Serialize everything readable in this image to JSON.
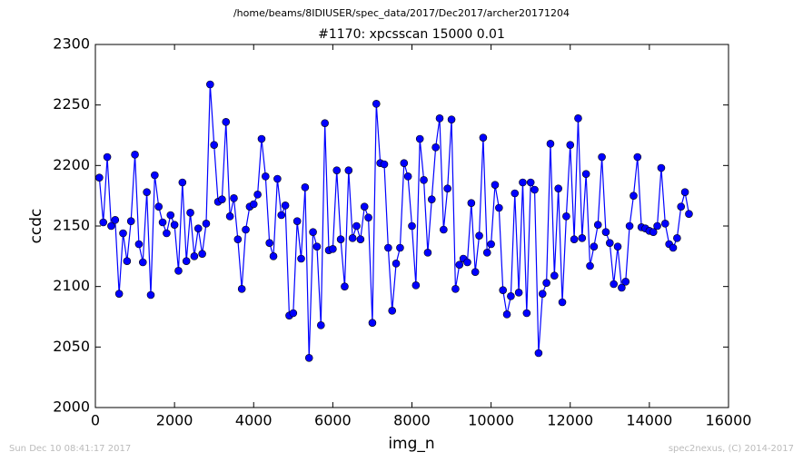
{
  "chart_data": {
    "type": "line",
    "suptitle": "/home/beams/8IDIUSER/spec_data/2017/Dec2017/archer20171204",
    "title": "#1170: xpcsscan 15000 0.01",
    "xlabel": "img_n",
    "ylabel": "ccdc",
    "footer_left": "Sun Dec 10 08:41:17 2017",
    "footer_right": "spec2nexus, (C) 2014-2017",
    "color": "#0000ff",
    "xlim": [
      0,
      16000
    ],
    "xticks": [
      0,
      2000,
      4000,
      6000,
      8000,
      10000,
      12000,
      14000,
      16000
    ],
    "ylim": [
      2000,
      2300
    ],
    "yticks": [
      2000,
      2050,
      2100,
      2150,
      2200,
      2250,
      2300
    ],
    "x": [
      100,
      200,
      300,
      400,
      500,
      600,
      700,
      800,
      900,
      1000,
      1100,
      1200,
      1300,
      1400,
      1500,
      1600,
      1700,
      1800,
      1900,
      2000,
      2100,
      2200,
      2300,
      2400,
      2500,
      2600,
      2700,
      2800,
      2900,
      3000,
      3100,
      3200,
      3300,
      3400,
      3500,
      3600,
      3700,
      3800,
      3900,
      4000,
      4100,
      4200,
      4300,
      4400,
      4500,
      4600,
      4700,
      4800,
      4900,
      5000,
      5100,
      5200,
      5300,
      5400,
      5500,
      5600,
      5700,
      5800,
      5900,
      6000,
      6100,
      6200,
      6300,
      6400,
      6500,
      6600,
      6700,
      6800,
      6900,
      7000,
      7100,
      7200,
      7300,
      7400,
      7500,
      7600,
      7700,
      7800,
      7900,
      8000,
      8100,
      8200,
      8300,
      8400,
      8500,
      8600,
      8700,
      8800,
      8900,
      9000,
      9100,
      9200,
      9300,
      9400,
      9500,
      9600,
      9700,
      9800,
      9900,
      10000,
      10100,
      10200,
      10300,
      10400,
      10500,
      10600,
      10700,
      10800,
      10900,
      11000,
      11100,
      11200,
      11300,
      11400,
      11500,
      11600,
      11700,
      11800,
      11900,
      12000,
      12100,
      12200,
      12300,
      12400,
      12500,
      12600,
      12700,
      12800,
      12900,
      13000,
      13100,
      13200,
      13300,
      13400,
      13500,
      13600,
      13700,
      13800,
      13900,
      14000,
      14100,
      14200,
      14300,
      14400,
      14500,
      14600,
      14700,
      14800,
      14900,
      15000
    ],
    "values": [
      2190,
      2153,
      2207,
      2150,
      2155,
      2094,
      2144,
      2121,
      2154,
      2209,
      2135,
      2120,
      2178,
      2093,
      2192,
      2166,
      2153,
      2144,
      2159,
      2151,
      2113,
      2186,
      2121,
      2161,
      2125,
      2148,
      2127,
      2152,
      2267,
      2217,
      2170,
      2172,
      2236,
      2158,
      2173,
      2139,
      2098,
      2147,
      2166,
      2168,
      2176,
      2222,
      2191,
      2136,
      2125,
      2189,
      2159,
      2167,
      2076,
      2078,
      2154,
      2123,
      2182,
      2041,
      2145,
      2133,
      2068,
      2235,
      2130,
      2131,
      2196,
      2139,
      2100,
      2196,
      2140,
      2150,
      2139,
      2166,
      2157,
      2070,
      2251,
      2202,
      2201,
      2132,
      2080,
      2119,
      2132,
      2202,
      2191,
      2150,
      2101,
      2222,
      2188,
      2128,
      2172,
      2215,
      2239,
      2147,
      2181,
      2238,
      2098,
      2118,
      2123,
      2120,
      2169,
      2112,
      2142,
      2223,
      2128,
      2135,
      2184,
      2165,
      2097,
      2077,
      2092,
      2177,
      2095,
      2186,
      2078,
      2186,
      2180,
      2045,
      2094,
      2103,
      2218,
      2109,
      2181,
      2087,
      2158,
      2217,
      2139,
      2239,
      2140,
      2193,
      2117,
      2133,
      2151,
      2207,
      2145,
      2136,
      2102,
      2133,
      2099,
      2104,
      2150,
      2175,
      2207,
      2149,
      2148,
      2146,
      2145,
      2150,
      2198,
      2152,
      2135,
      2132,
      2140,
      2166,
      2178,
      2160
    ]
  }
}
